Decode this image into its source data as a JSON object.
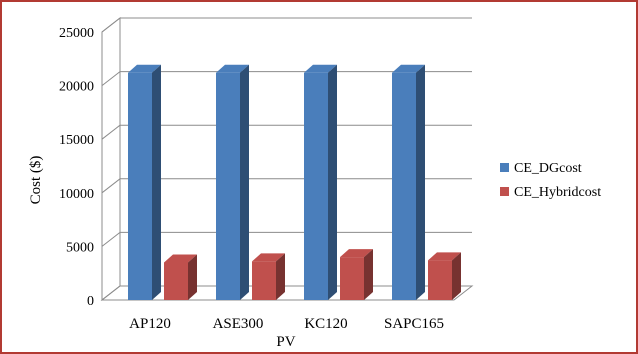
{
  "chart_data": {
    "type": "bar",
    "style": "3d-clustered-column",
    "categories": [
      "AP120",
      "ASE300",
      "KC120",
      "SAPC165"
    ],
    "series": [
      {
        "name": "CE_DGcost",
        "color": "#4a7ebb",
        "values": [
          21200,
          21200,
          21200,
          21200
        ]
      },
      {
        "name": "CE_Hybridcost",
        "color": "#c0504d",
        "values": [
          3500,
          3600,
          4000,
          3700
        ]
      }
    ],
    "yticks": [
      0,
      5000,
      10000,
      15000,
      20000,
      25000
    ],
    "ylim": [
      0,
      25000
    ],
    "xlabel": "PV",
    "ylabel": "Cost ($)",
    "grid": true,
    "legend": "right"
  }
}
